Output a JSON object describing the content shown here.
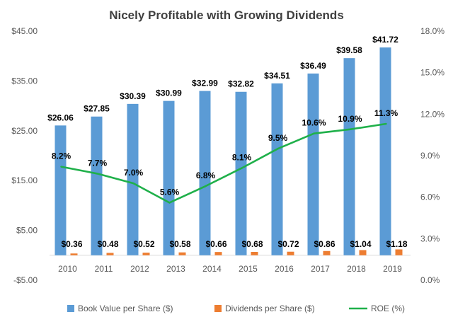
{
  "chart_data": {
    "type": "bar",
    "title": "Nicely Profitable with Growing Dividends",
    "categories": [
      "2010",
      "2011",
      "2012",
      "2013",
      "2014",
      "2015",
      "2016",
      "2017",
      "2018",
      "2019"
    ],
    "y_left": {
      "ylim": [
        -5,
        45
      ],
      "ticks": [
        -5,
        5,
        15,
        25,
        35,
        45
      ],
      "tick_labels": [
        "-$5.00",
        "$5.00",
        "$15.00",
        "$25.00",
        "$35.00",
        "$45.00"
      ]
    },
    "y_right": {
      "ylim": [
        0,
        18
      ],
      "ticks": [
        0,
        3,
        6,
        9,
        12,
        15,
        18
      ],
      "tick_labels": [
        "0.0%",
        "3.0%",
        "6.0%",
        "9.0%",
        "12.0%",
        "15.0%",
        "18.0%"
      ]
    },
    "grid": false,
    "legend": "bottom",
    "series": [
      {
        "name": "Book Value per Share ($)",
        "type": "bar",
        "axis": "left",
        "color": "#5b9bd5",
        "values": [
          26.06,
          27.85,
          30.39,
          30.99,
          32.99,
          32.82,
          34.51,
          36.49,
          39.58,
          41.72
        ],
        "labels": [
          "$26.06",
          "$27.85",
          "$30.39",
          "$30.99",
          "$32.99",
          "$32.82",
          "$34.51",
          "$36.49",
          "$39.58",
          "$41.72"
        ]
      },
      {
        "name": "Dividends per Share ($)",
        "type": "bar",
        "axis": "left",
        "color": "#ed7d31",
        "values": [
          0.36,
          0.48,
          0.52,
          0.58,
          0.66,
          0.68,
          0.72,
          0.86,
          1.04,
          1.18
        ],
        "labels": [
          "$0.36",
          "$0.48",
          "$0.52",
          "$0.58",
          "$0.66",
          "$0.68",
          "$0.72",
          "$0.86",
          "$1.04",
          "$1.18"
        ]
      },
      {
        "name": "ROE (%)",
        "type": "line",
        "axis": "right",
        "color": "#1fb04a",
        "values": [
          8.2,
          7.7,
          7.0,
          5.6,
          6.8,
          8.1,
          9.5,
          10.6,
          10.9,
          11.3
        ],
        "labels": [
          "8.2%",
          "7.7%",
          "7.0%",
          "5.6%",
          "6.8%",
          "8.1%",
          "9.5%",
          "10.6%",
          "10.9%",
          "11.3%"
        ]
      }
    ]
  }
}
